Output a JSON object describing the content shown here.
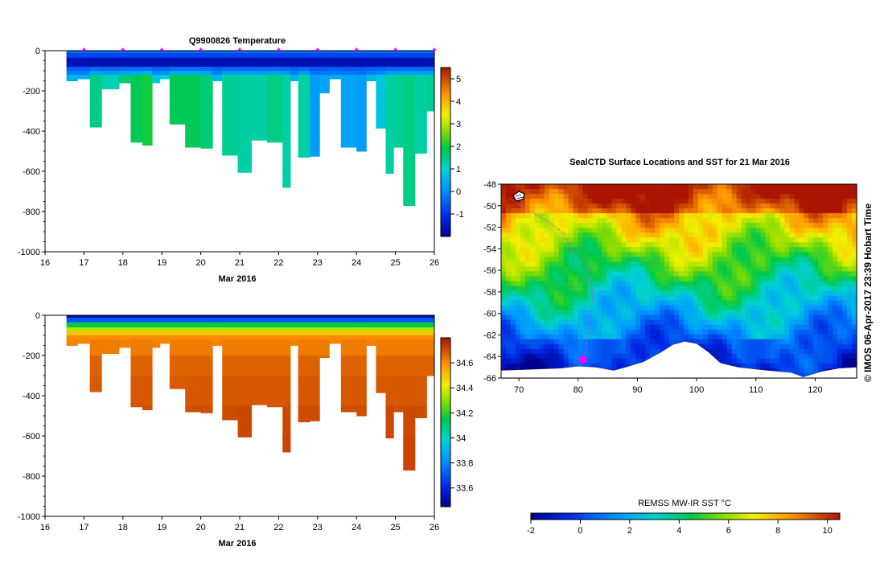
{
  "chart_data": [
    {
      "type": "heatmap",
      "title": "Q9900826  Temperature",
      "xlabel": "Mar 2016",
      "ylabel": "",
      "xlim": [
        16,
        26
      ],
      "ylim": [
        -1000,
        0
      ],
      "xticks": [
        "16",
        "17",
        "18",
        "19",
        "20",
        "21",
        "22",
        "23",
        "24",
        "25",
        "26"
      ],
      "yticks": [
        "0",
        "-200",
        "-400",
        "-600",
        "-800",
        "-1000"
      ],
      "colorbar": {
        "min": -2,
        "max": 5.5,
        "ticks": [
          "5",
          "4",
          "3",
          "2",
          "1",
          "0",
          "-1"
        ]
      },
      "profile_markers": [
        17,
        18,
        19,
        20,
        21,
        22,
        23,
        24,
        25,
        26
      ],
      "profiles_x_start": [
        16.55,
        16.83,
        17.15,
        17.45,
        17.9,
        18.2,
        18.5,
        18.75,
        18.95,
        19.2,
        19.6,
        20.0,
        20.3,
        20.55,
        20.95,
        21.3,
        21.7,
        22.1,
        22.3,
        22.5,
        22.8,
        23.05,
        23.3,
        23.6,
        24.0,
        24.25,
        24.5,
        24.75,
        24.95,
        25.2,
        25.5,
        25.8
      ],
      "profiles_max_depth": [
        150,
        140,
        380,
        190,
        160,
        455,
        470,
        160,
        140,
        365,
        480,
        485,
        150,
        520,
        605,
        445,
        455,
        680,
        150,
        530,
        525,
        210,
        140,
        480,
        500,
        150,
        385,
        610,
        480,
        770,
        510,
        300
      ],
      "deep_temp_deg": [
        0.5,
        0.5,
        1.5,
        1.2,
        1.6,
        1.8,
        2.0,
        0.8,
        0.9,
        1.8,
        1.8,
        1.6,
        0.5,
        1.4,
        1.3,
        1.3,
        1.5,
        1.3,
        0.5,
        1.3,
        0.2,
        0.3,
        0.4,
        0.3,
        0.2,
        0.6,
        0.8,
        1.3,
        1.4,
        1.5,
        1.3,
        1.4
      ]
    },
    {
      "type": "heatmap",
      "title": "",
      "xlabel": "Mar 2016",
      "xlim": [
        16,
        26
      ],
      "ylim": [
        -1000,
        0
      ],
      "xticks": [
        "16",
        "17",
        "18",
        "19",
        "20",
        "21",
        "22",
        "23",
        "24",
        "25",
        "26"
      ],
      "yticks": [
        "0",
        "-200",
        "-400",
        "-600",
        "-800",
        "-1000"
      ],
      "colorbar": {
        "min": 33.45,
        "max": 34.8,
        "ticks": [
          "34.6",
          "34.4",
          "34.2",
          "34",
          "33.8",
          "33.6"
        ]
      }
    },
    {
      "type": "heatmap",
      "title": "SealCTD Surface Locations and SST for 21 Mar 2016",
      "xlim": [
        67,
        127
      ],
      "ylim": [
        -66,
        -48
      ],
      "xticks": [
        "70",
        "80",
        "90",
        "100",
        "110",
        "120"
      ],
      "yticks": [
        "-48",
        "-50",
        "-52",
        "-54",
        "-56",
        "-58",
        "-60",
        "-62",
        "-64",
        "-66"
      ],
      "colorbar": {
        "label": "REMSS MW-IR SST °C",
        "min": -2,
        "max": 10.5,
        "ticks": [
          "-2",
          "0",
          "2",
          "4",
          "6",
          "8",
          "10"
        ]
      },
      "current_position": {
        "lon": 80.8,
        "lat": -64.3
      },
      "track": [
        [
          68.5,
          -49.3
        ],
        [
          72,
          -50.6
        ],
        [
          74.5,
          -51.3
        ],
        [
          77.5,
          -52.5
        ],
        [
          79,
          -54.2
        ],
        [
          81.5,
          -55.5
        ],
        [
          82.5,
          -58.0
        ],
        [
          82,
          -61.0
        ],
        [
          81,
          -64.3
        ]
      ]
    }
  ],
  "stamp": "© IMOS 06-Apr-2017 23:39 Hobart Time"
}
